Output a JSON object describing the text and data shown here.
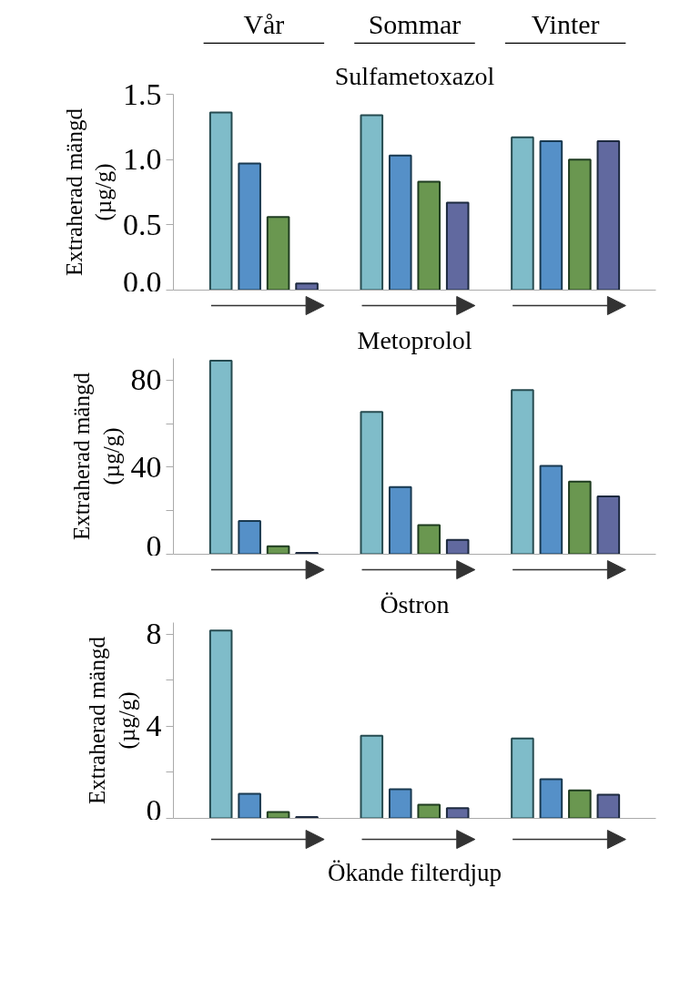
{
  "chart_data": [
    {
      "type": "bar",
      "title": "Sulfametoxazol",
      "ylabel": "Extraherad mängd (µg/g)",
      "categories": [
        "Vår",
        "Sommar",
        "Vinter"
      ],
      "series": [
        {
          "color": "#7fbcc9",
          "values": [
            1.36,
            1.34,
            1.17
          ]
        },
        {
          "color": "#5590c8",
          "values": [
            0.97,
            1.03,
            1.14
          ]
        },
        {
          "color": "#6a9750",
          "values": [
            0.56,
            0.83,
            1.0
          ]
        },
        {
          "color": "#61699f",
          "values": [
            0.05,
            0.67,
            1.14
          ]
        }
      ],
      "ylim": [
        0,
        1.5
      ],
      "yticks": [
        {
          "value": 0,
          "label": "0.0"
        },
        {
          "value": 0.5,
          "label": "0.5"
        },
        {
          "value": 1,
          "label": "1.0"
        },
        {
          "value": 1.5,
          "label": "1.5"
        }
      ]
    },
    {
      "type": "bar",
      "title": "Metoprolol",
      "ylabel": "Extraherad mängd (µg/g)",
      "categories": [
        null,
        null,
        null
      ],
      "series": [
        {
          "color": "#7fbcc9",
          "values": [
            89,
            65.4,
            75.5
          ]
        },
        {
          "color": "#5590c8",
          "values": [
            15.3,
            30.9,
            40.6
          ]
        },
        {
          "color": "#6a9750",
          "values": [
            3.7,
            13.4,
            33.4
          ]
        },
        {
          "color": "#61699f",
          "values": [
            0.6,
            6.6,
            26.6
          ]
        }
      ],
      "ylim": [
        0,
        90
      ],
      "yticks": [
        0,
        {
          "value": 20,
          "label": null
        },
        40,
        {
          "value": 60,
          "label": null
        },
        80
      ],
      "tick_labels": "y"
    },
    {
      "type": "bar",
      "title": "Östron",
      "ylabel": "Extraherad mängd (µg/g)",
      "xlabel": "Ökande filterdjup",
      "categories": [
        null,
        null,
        null
      ],
      "series": [
        {
          "color": "#7fbcc9",
          "values": [
            8.15,
            3.59,
            3.47
          ]
        },
        {
          "color": "#5590c8",
          "values": [
            1.07,
            1.27,
            1.7
          ]
        },
        {
          "color": "#6a9750",
          "values": [
            0.28,
            0.59,
            1.22
          ]
        },
        {
          "color": "#61699f",
          "values": [
            0.06,
            0.44,
            1.03
          ]
        }
      ],
      "ylim": [
        0,
        8.5
      ],
      "yticks": [
        0,
        {
          "value": 2,
          "label": null
        },
        4,
        {
          "value": 6,
          "label": null
        },
        8
      ],
      "tick_labels": "y"
    }
  ]
}
